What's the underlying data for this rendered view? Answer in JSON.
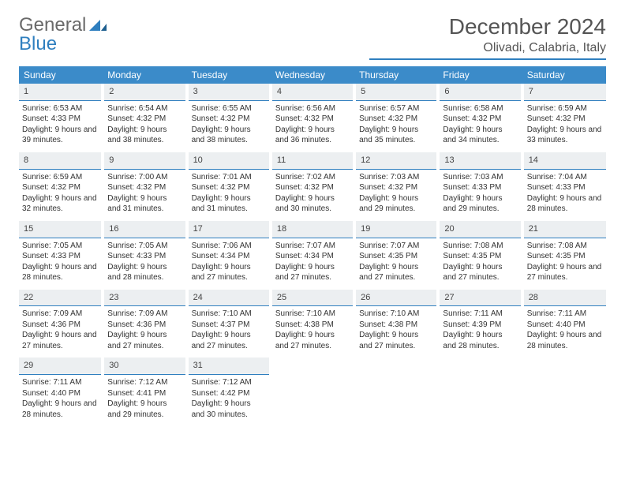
{
  "brand": {
    "name_part1": "General",
    "name_part2": "Blue"
  },
  "title": "December 2024",
  "location": "Olivadi, Calabria, Italy",
  "colors": {
    "header_bg": "#3b8bc9",
    "accent": "#2f7fbf",
    "daynum_bg": "#eceff1",
    "text": "#333333",
    "muted": "#6a6a6a"
  },
  "fonts": {
    "base_family": "Arial",
    "title_size_pt": 21,
    "location_size_pt": 12,
    "dayhead_size_pt": 9,
    "body_size_pt": 7.5
  },
  "dayNames": [
    "Sunday",
    "Monday",
    "Tuesday",
    "Wednesday",
    "Thursday",
    "Friday",
    "Saturday"
  ],
  "labels": {
    "sunrise": "Sunrise:",
    "sunset": "Sunset:",
    "daylight": "Daylight:"
  },
  "weeks": [
    [
      {
        "n": "1",
        "sunrise": "6:53 AM",
        "sunset": "4:33 PM",
        "daylight": "9 hours and 39 minutes."
      },
      {
        "n": "2",
        "sunrise": "6:54 AM",
        "sunset": "4:32 PM",
        "daylight": "9 hours and 38 minutes."
      },
      {
        "n": "3",
        "sunrise": "6:55 AM",
        "sunset": "4:32 PM",
        "daylight": "9 hours and 38 minutes."
      },
      {
        "n": "4",
        "sunrise": "6:56 AM",
        "sunset": "4:32 PM",
        "daylight": "9 hours and 36 minutes."
      },
      {
        "n": "5",
        "sunrise": "6:57 AM",
        "sunset": "4:32 PM",
        "daylight": "9 hours and 35 minutes."
      },
      {
        "n": "6",
        "sunrise": "6:58 AM",
        "sunset": "4:32 PM",
        "daylight": "9 hours and 34 minutes."
      },
      {
        "n": "7",
        "sunrise": "6:59 AM",
        "sunset": "4:32 PM",
        "daylight": "9 hours and 33 minutes."
      }
    ],
    [
      {
        "n": "8",
        "sunrise": "6:59 AM",
        "sunset": "4:32 PM",
        "daylight": "9 hours and 32 minutes."
      },
      {
        "n": "9",
        "sunrise": "7:00 AM",
        "sunset": "4:32 PM",
        "daylight": "9 hours and 31 minutes."
      },
      {
        "n": "10",
        "sunrise": "7:01 AM",
        "sunset": "4:32 PM",
        "daylight": "9 hours and 31 minutes."
      },
      {
        "n": "11",
        "sunrise": "7:02 AM",
        "sunset": "4:32 PM",
        "daylight": "9 hours and 30 minutes."
      },
      {
        "n": "12",
        "sunrise": "7:03 AM",
        "sunset": "4:32 PM",
        "daylight": "9 hours and 29 minutes."
      },
      {
        "n": "13",
        "sunrise": "7:03 AM",
        "sunset": "4:33 PM",
        "daylight": "9 hours and 29 minutes."
      },
      {
        "n": "14",
        "sunrise": "7:04 AM",
        "sunset": "4:33 PM",
        "daylight": "9 hours and 28 minutes."
      }
    ],
    [
      {
        "n": "15",
        "sunrise": "7:05 AM",
        "sunset": "4:33 PM",
        "daylight": "9 hours and 28 minutes."
      },
      {
        "n": "16",
        "sunrise": "7:05 AM",
        "sunset": "4:33 PM",
        "daylight": "9 hours and 28 minutes."
      },
      {
        "n": "17",
        "sunrise": "7:06 AM",
        "sunset": "4:34 PM",
        "daylight": "9 hours and 27 minutes."
      },
      {
        "n": "18",
        "sunrise": "7:07 AM",
        "sunset": "4:34 PM",
        "daylight": "9 hours and 27 minutes."
      },
      {
        "n": "19",
        "sunrise": "7:07 AM",
        "sunset": "4:35 PM",
        "daylight": "9 hours and 27 minutes."
      },
      {
        "n": "20",
        "sunrise": "7:08 AM",
        "sunset": "4:35 PM",
        "daylight": "9 hours and 27 minutes."
      },
      {
        "n": "21",
        "sunrise": "7:08 AM",
        "sunset": "4:35 PM",
        "daylight": "9 hours and 27 minutes."
      }
    ],
    [
      {
        "n": "22",
        "sunrise": "7:09 AM",
        "sunset": "4:36 PM",
        "daylight": "9 hours and 27 minutes."
      },
      {
        "n": "23",
        "sunrise": "7:09 AM",
        "sunset": "4:36 PM",
        "daylight": "9 hours and 27 minutes."
      },
      {
        "n": "24",
        "sunrise": "7:10 AM",
        "sunset": "4:37 PM",
        "daylight": "9 hours and 27 minutes."
      },
      {
        "n": "25",
        "sunrise": "7:10 AM",
        "sunset": "4:38 PM",
        "daylight": "9 hours and 27 minutes."
      },
      {
        "n": "26",
        "sunrise": "7:10 AM",
        "sunset": "4:38 PM",
        "daylight": "9 hours and 27 minutes."
      },
      {
        "n": "27",
        "sunrise": "7:11 AM",
        "sunset": "4:39 PM",
        "daylight": "9 hours and 28 minutes."
      },
      {
        "n": "28",
        "sunrise": "7:11 AM",
        "sunset": "4:40 PM",
        "daylight": "9 hours and 28 minutes."
      }
    ],
    [
      {
        "n": "29",
        "sunrise": "7:11 AM",
        "sunset": "4:40 PM",
        "daylight": "9 hours and 28 minutes."
      },
      {
        "n": "30",
        "sunrise": "7:12 AM",
        "sunset": "4:41 PM",
        "daylight": "9 hours and 29 minutes."
      },
      {
        "n": "31",
        "sunrise": "7:12 AM",
        "sunset": "4:42 PM",
        "daylight": "9 hours and 30 minutes."
      },
      null,
      null,
      null,
      null
    ]
  ]
}
